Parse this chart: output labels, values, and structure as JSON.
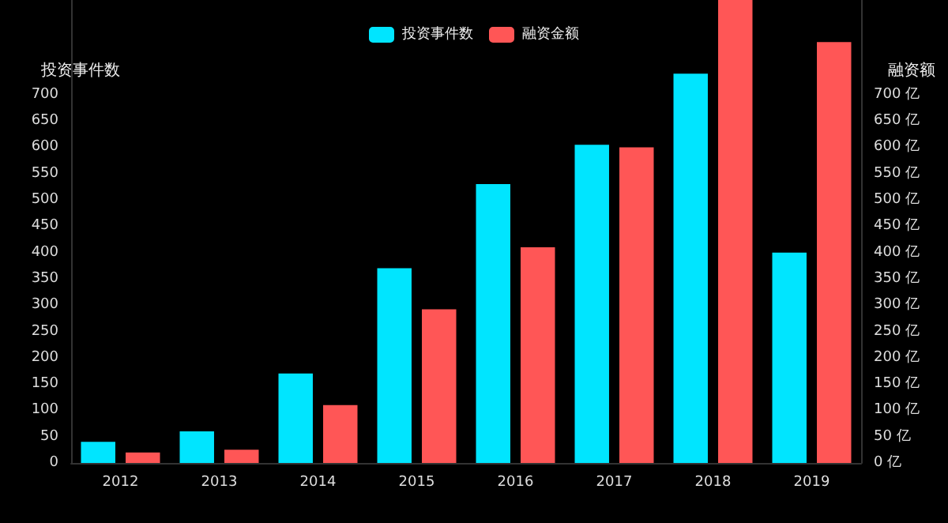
{
  "chart_data": {
    "type": "bar",
    "categories": [
      "2012",
      "2013",
      "2014",
      "2015",
      "2016",
      "2017",
      "2018",
      "2019"
    ],
    "series": [
      {
        "name": "投资事件数",
        "color": "#00e5ff",
        "values": [
          40,
          60,
          170,
          370,
          530,
          605,
          740,
          400
        ]
      },
      {
        "name": "融资金额",
        "color": "#ff5656",
        "values": [
          20,
          25,
          110,
          292,
          410,
          600,
          880,
          800
        ]
      }
    ],
    "ylabel": "投资事件数",
    "y2label": "融资额",
    "ylim": [
      0,
      880
    ],
    "yticks": [
      0,
      50,
      100,
      150,
      200,
      250,
      300,
      350,
      400,
      450,
      500,
      550,
      600,
      650,
      700
    ],
    "y2lim": [
      0,
      880
    ],
    "y2ticks": [
      {
        "value": 0,
        "label": "0 亿"
      },
      {
        "value": 50,
        "label": "50 亿"
      },
      {
        "value": 100,
        "label": "100 亿"
      },
      {
        "value": 150,
        "label": "150 亿"
      },
      {
        "value": 200,
        "label": "200 亿"
      },
      {
        "value": 250,
        "label": "250 亿"
      },
      {
        "value": 300,
        "label": "300 亿"
      },
      {
        "value": 350,
        "label": "350 亿"
      },
      {
        "value": 400,
        "label": "400 亿"
      },
      {
        "value": 450,
        "label": "450 亿"
      },
      {
        "value": 500,
        "label": "500 亿"
      },
      {
        "value": 550,
        "label": "550 亿"
      },
      {
        "value": 600,
        "label": "600 亿"
      },
      {
        "value": 650,
        "label": "650 亿"
      },
      {
        "value": 700,
        "label": "700 亿"
      }
    ],
    "legend": "top",
    "grid": false
  }
}
